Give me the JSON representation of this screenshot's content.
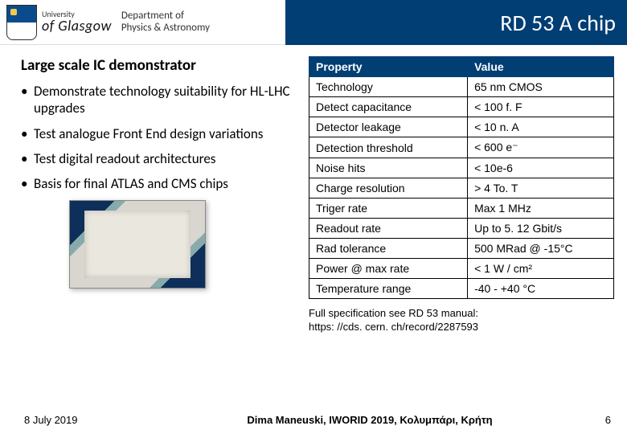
{
  "header": {
    "university_line1": "University",
    "university_line2": "of Glasgow",
    "department_line1": "Department of",
    "department_line2": "Physics & Astronomy",
    "title": "RD 53 A chip"
  },
  "left": {
    "subhead": "Large scale IC demonstrator",
    "bullets": [
      "Demonstrate technology suitability for HL-LHC upgrades",
      "Test analogue Front End design variations",
      "Test digital readout architectures",
      "Basis for final ATLAS and CMS chips"
    ]
  },
  "table": {
    "head_property": "Property",
    "head_value": "Value",
    "rows": [
      {
        "p": "Technology",
        "v": "65 nm CMOS"
      },
      {
        "p": "Detect capacitance",
        "v": "< 100 f. F"
      },
      {
        "p": "Detector leakage",
        "v": "< 10 n. A"
      },
      {
        "p": "Detection threshold",
        "v": "< 600 e⁻"
      },
      {
        "p": "Noise hits",
        "v": "< 10e-6"
      },
      {
        "p": "Charge resolution",
        "v": "> 4 To. T"
      },
      {
        "p": "Triger rate",
        "v": "Max 1 MHz"
      },
      {
        "p": "Readout rate",
        "v": "Up to 5. 12 Gbit/s"
      },
      {
        "p": "Rad tolerance",
        "v": "500 MRad @ -15°C"
      },
      {
        "p": "Power @ max rate",
        "v": "< 1 W / cm²"
      },
      {
        "p": "Temperature range",
        "v": "-40 - +40 °C"
      }
    ]
  },
  "footnote_line1": "Full specification see RD 53 manual:",
  "footnote_line2": "https: //cds. cern. ch/record/2287593",
  "footer": {
    "date": "8 July 2019",
    "mid": "Dima Maneuski, IWORID 2019, Κολυμπάρι, Κρήτη",
    "page": "6"
  },
  "colors": {
    "header_blue": "#003e74",
    "text": "#000000",
    "background": "#ffffff"
  }
}
